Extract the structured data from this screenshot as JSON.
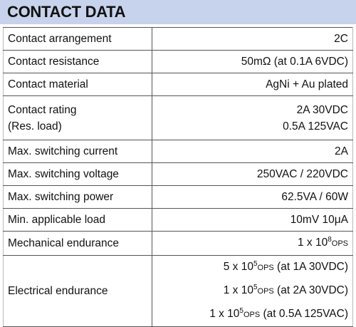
{
  "header": {
    "title": "CONTACT DATA"
  },
  "table": {
    "rows": [
      {
        "label": [
          "Contact arrangement"
        ],
        "values": [
          "2C"
        ]
      },
      {
        "label": [
          "Contact resistance"
        ],
        "values": [
          "50mΩ (at 0.1A 6VDC)"
        ]
      },
      {
        "label": [
          "Contact material"
        ],
        "values": [
          "AgNi + Au plated"
        ]
      },
      {
        "label": [
          "Contact rating",
          "(Res. load)"
        ],
        "values": [
          "2A  30VDC",
          "0.5A 125VAC"
        ]
      },
      {
        "label": [
          "Max. switching current"
        ],
        "values": [
          "2A"
        ]
      },
      {
        "label": [
          "Max. switching voltage"
        ],
        "values": [
          "250VAC / 220VDC"
        ]
      },
      {
        "label": [
          "Max. switching power"
        ],
        "values": [
          "62.5VA / 60W"
        ]
      },
      {
        "label": [
          "Min.  applicable load"
        ],
        "values": [
          "10mV 10μA"
        ]
      },
      {
        "label": [
          "Mechanical endurance"
        ],
        "values": [
          {
            "pre": "1 x 10",
            "sup": "8",
            "unit": "OPS"
          }
        ]
      },
      {
        "label": [
          "Electrical endurance"
        ],
        "values": [
          {
            "pre": "5 x 10",
            "sup": "5",
            "unit": "OPS",
            "post": " (at 1A 30VDC)"
          },
          {
            "pre": "1 x 10",
            "sup": "5",
            "unit": "OPS",
            "post": " (at 2A 30VDC)"
          },
          {
            "pre": "1 x 10",
            "sup": "5",
            "unit": "OPS",
            "post": " (at 0.5A 125VAC)"
          }
        ]
      }
    ]
  }
}
